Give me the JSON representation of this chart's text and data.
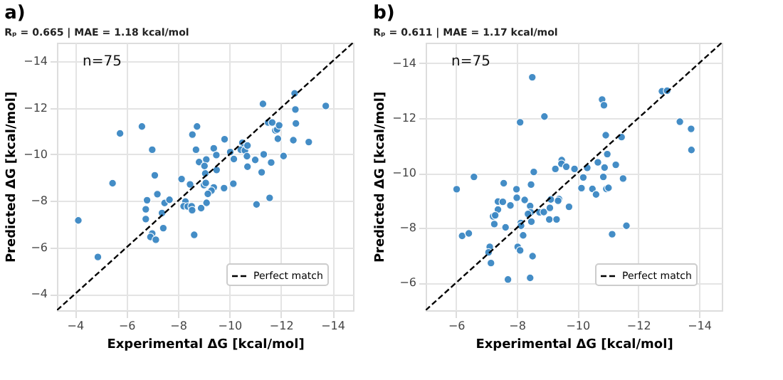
{
  "chart_data": [
    {
      "type": "scatter",
      "title": "a)",
      "subtitle": "Rₚ = 0.665 | MAE = 1.18 kcal/mol",
      "xlabel": "Experimental ΔG [kcal/mol]",
      "ylabel": "Predicted ΔG [kcal/mol]",
      "annotations": [
        "n=75"
      ],
      "xlim": [
        -3.3,
        -14.8
      ],
      "ylim": [
        -3.3,
        -14.8
      ],
      "xticks": [
        -4,
        -6,
        -8,
        -10,
        -12,
        -14
      ],
      "yticks": [
        -4,
        -6,
        -8,
        -10,
        -12,
        -14
      ],
      "grid": true,
      "legend": "bottom right",
      "series": [
        {
          "marker": "circle",
          "color": "#3a87c4",
          "x": [
            -5.75,
            -6.6,
            -7.0,
            -7.1,
            -8.74,
            -8.56,
            -8.7,
            -9.39,
            -9.81,
            -8.82,
            -9.1,
            -9.49,
            -9.5,
            -9.06,
            -10.03,
            -10.17,
            -10.5,
            -10.55,
            -10.44,
            -10.6,
            -10.7,
            -10.68,
            -11.0,
            -11.25,
            -11.33,
            -11.3,
            -11.5,
            -11.66,
            -11.78,
            -11.85,
            -11.93,
            -11.88,
            -11.62,
            -12.1,
            -12.53,
            -12.56,
            -12.58,
            -12.48,
            -13.08,
            -13.74,
            -5.46,
            -4.13,
            -4.89,
            -6.8,
            -7.2,
            -6.75,
            -6.75,
            -7.48,
            -7.67,
            -7.38,
            -7.43,
            -7.0,
            -6.93,
            -7.14,
            -8.14,
            -8.47,
            -9.01,
            -9.08,
            -9.39,
            -9.3,
            -9.16,
            -9.79,
            -10.15,
            -8.29,
            -8.22,
            -8.38,
            -8.53,
            -8.55,
            -8.9,
            -9.11,
            -8.63,
            -11.05,
            -11.56,
            -10.7,
            -9.03
          ],
          "values": [
            -10.9,
            -11.2,
            -10.2,
            -9.1,
            -11.2,
            -10.85,
            -10.2,
            -10.26,
            -10.65,
            -9.67,
            -9.78,
            -9.97,
            -9.33,
            -9.18,
            -10.1,
            -9.8,
            -10.5,
            -10.3,
            -10.2,
            -10.17,
            -10.38,
            -9.92,
            -9.76,
            -9.23,
            -10.0,
            -12.17,
            -11.37,
            -11.37,
            -11.03,
            -11.07,
            -11.25,
            -10.67,
            -9.65,
            -9.93,
            -12.62,
            -11.93,
            -11.33,
            -10.61,
            -10.53,
            -12.08,
            -8.76,
            -7.16,
            -5.59,
            -8.03,
            -8.29,
            -7.64,
            -7.22,
            -7.91,
            -8.05,
            -7.48,
            -6.83,
            -6.6,
            -6.45,
            -6.33,
            -8.94,
            -8.71,
            -8.68,
            -8.77,
            -8.58,
            -8.44,
            -8.3,
            -8.55,
            -8.74,
            -7.97,
            -7.77,
            -7.76,
            -7.77,
            -7.6,
            -7.69,
            -7.92,
            -6.54,
            -7.85,
            -8.13,
            -9.47,
            -9.5
          ]
        },
        {
          "type": "line",
          "name": "Perfect match",
          "color": "#000000",
          "line_style": "dashed",
          "x": [
            -3.3,
            -14.8
          ],
          "values": [
            -3.3,
            -14.8
          ]
        }
      ]
    },
    {
      "type": "scatter",
      "title": "b)",
      "subtitle": "Rₚ = 0.611 | MAE = 1.17 kcal/mol",
      "xlabel": "Experimental ΔG [kcal/mol]",
      "ylabel": "Predicted ΔG [kcal/mol]",
      "annotations": [
        "n=75"
      ],
      "xlim": [
        -5.0,
        -14.75
      ],
      "ylim": [
        -5.0,
        -14.75
      ],
      "xticks": [
        -6,
        -8,
        -10,
        -12,
        -14
      ],
      "yticks": [
        -6,
        -8,
        -10,
        -12,
        -14
      ],
      "grid": true,
      "legend": "bottom right",
      "series": [
        {
          "marker": "circle",
          "color": "#3a87c4",
          "x": [
            -8.51,
            -8.11,
            -8.91,
            -10.81,
            -10.87,
            -10.93,
            -11.45,
            -12.78,
            -12.95,
            -13.37,
            -13.74,
            -13.75,
            -10.98,
            -11.26,
            -10.67,
            -9.48,
            -9.47,
            -8.56,
            -9.27,
            -9.63,
            -9.9,
            -10.32,
            -10.89,
            -6.59,
            -10.19,
            -10.85,
            -11.5,
            -6.02,
            -7.57,
            -7.99,
            -8.47,
            -7.38,
            -7.54,
            -7.38,
            -7.79,
            -8.0,
            -8.26,
            -8.44,
            -8.46,
            -8.37,
            -8.75,
            -8.89,
            -9.09,
            -9.12,
            -9.39,
            -9.72,
            -9.07,
            -9.31,
            -7.22,
            -7.29,
            -7.26,
            -8.48,
            -8.13,
            -7.63,
            -6.2,
            -6.42,
            -7.11,
            -7.07,
            -7.15,
            -8.03,
            -8.11,
            -8.21,
            -8.52,
            -7.71,
            -8.44,
            -10.13,
            -10.49,
            -10.61,
            -10.95,
            -11.02,
            -11.14,
            -11.61,
            -8.14,
            -9.36
          ],
          "values": [
            -13.49,
            -11.85,
            -12.06,
            -12.68,
            -12.47,
            -11.38,
            -11.31,
            -12.98,
            -13.0,
            -11.87,
            -11.61,
            -10.84,
            -10.69,
            -10.3,
            -10.39,
            -10.47,
            -10.34,
            -10.04,
            -10.15,
            -10.23,
            -10.15,
            -10.19,
            -10.2,
            -9.86,
            -9.84,
            -9.86,
            -9.8,
            -9.41,
            -9.63,
            -9.41,
            -9.58,
            -8.96,
            -8.95,
            -8.67,
            -8.82,
            -9.1,
            -9.02,
            -8.8,
            -8.57,
            -8.51,
            -8.57,
            -8.58,
            -8.73,
            -9.04,
            -9.05,
            -8.77,
            -8.31,
            -8.31,
            -8.42,
            -8.46,
            -8.14,
            -8.23,
            -8.18,
            -8.02,
            -7.71,
            -7.8,
            -7.31,
            -7.11,
            -6.72,
            -7.31,
            -7.18,
            -7.73,
            -6.97,
            -6.12,
            -6.18,
            -9.45,
            -9.42,
            -9.22,
            -9.42,
            -9.46,
            -7.77,
            -8.08,
            -8.08,
            -8.99
          ]
        },
        {
          "type": "line",
          "name": "Perfect match",
          "color": "#000000",
          "line_style": "dashed",
          "x": [
            -5.0,
            -14.75
          ],
          "values": [
            -5.0,
            -14.75
          ]
        }
      ]
    }
  ]
}
